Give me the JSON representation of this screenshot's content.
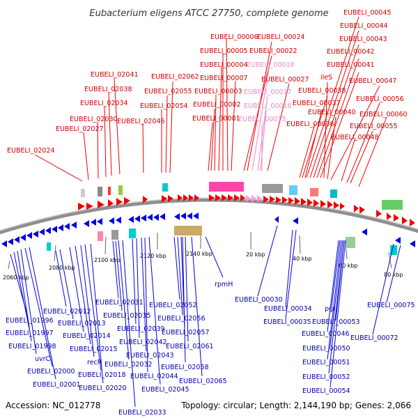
{
  "title": "Eubacterium eligens ATCC 27750, complete genome",
  "footer": {
    "accession": "Accession: NC_012778",
    "summary": "Topology: circular; Length: 2,144,190 bp; Genes: 2,066"
  },
  "colors": {
    "forward": "#ee0000",
    "reverse": "#0000dd",
    "forward_label": "#cc0000",
    "reverse_label": "#0000aa",
    "faded_label": "#ee88cc",
    "backbone": "#888888",
    "tick": "#228b22"
  },
  "ticks": [
    "2060 kbp",
    "2080 kbp",
    "2100 kbp",
    "2120 kbp",
    "2140 kbp",
    "20 kbp",
    "40 kbp",
    "60 kbp",
    "80 kbp"
  ],
  "forward_labels": [
    "EUBELI_00006",
    "EUBELI_00005",
    "EUBELI_00004",
    "EUBELI_00007",
    "EUBELI_00003",
    "EUBELI_00002",
    "EUBELI_00001",
    "EUBELI_00024",
    "EUBELI_00022",
    "EUBELI_00018",
    "EUBELI_00027",
    "EUBELI_00017",
    "EUBELI_00016",
    "EUBELI_00015",
    "EUBELI_00045",
    "EUBELI_00044",
    "EUBELI_00043",
    "EUBELI_00042",
    "EUBELI_00041",
    "ileS",
    "EUBELI_00047",
    "EUBELI_00038",
    "EUBELI_00037",
    "EUBELI_00056",
    "EUBELI_00040",
    "EUBELI_00060",
    "EUBELI_00036",
    "EUBELI_00055",
    "EUBELI_00048",
    "EUBELI_02041",
    "EUBELI_02038",
    "EUBELI_02034",
    "EUBELI_02030",
    "EUBELI_02027",
    "EUBELI_02024",
    "EUBELI_02062",
    "EUBELI_02055",
    "EUBELI_02054",
    "EUBELI_02046"
  ],
  "reverse_labels": [
    "EUBELI_02012",
    "EUBELI_01996",
    "EUBELI_02013",
    "EUBELI_01997",
    "EUBELI_02014",
    "EUBELI_01998",
    "EUBELI_02015",
    "uvrC",
    "recR",
    "EUBELI_02000",
    "EUBELI_02018",
    "EUBELI_02001",
    "EUBELI_02020",
    "EUBELI_02033",
    "EUBELI_02031",
    "EUBELI_02035",
    "EUBELI_02039",
    "EUBELI_02042",
    "EUBELI_02032",
    "EUBELI_02043",
    "EUBELI_02044",
    "EUBELI_02045",
    "EUBELI_02052",
    "EUBELI_02056",
    "EUBELI_02057",
    "EUBELI_02061",
    "EUBELI_02058",
    "EUBELI_02065",
    "rpmH",
    "EUBELI_00030",
    "EUBELI_00034",
    "EUBELI_00035",
    "pgi",
    "EUBELI_00053",
    "EUBELI_00046",
    "EUBELI_00050",
    "EUBELI_00051",
    "EUBELI_00052",
    "EUBELI_00054",
    "EUBELI_00075",
    "EUBELI_00072"
  ]
}
